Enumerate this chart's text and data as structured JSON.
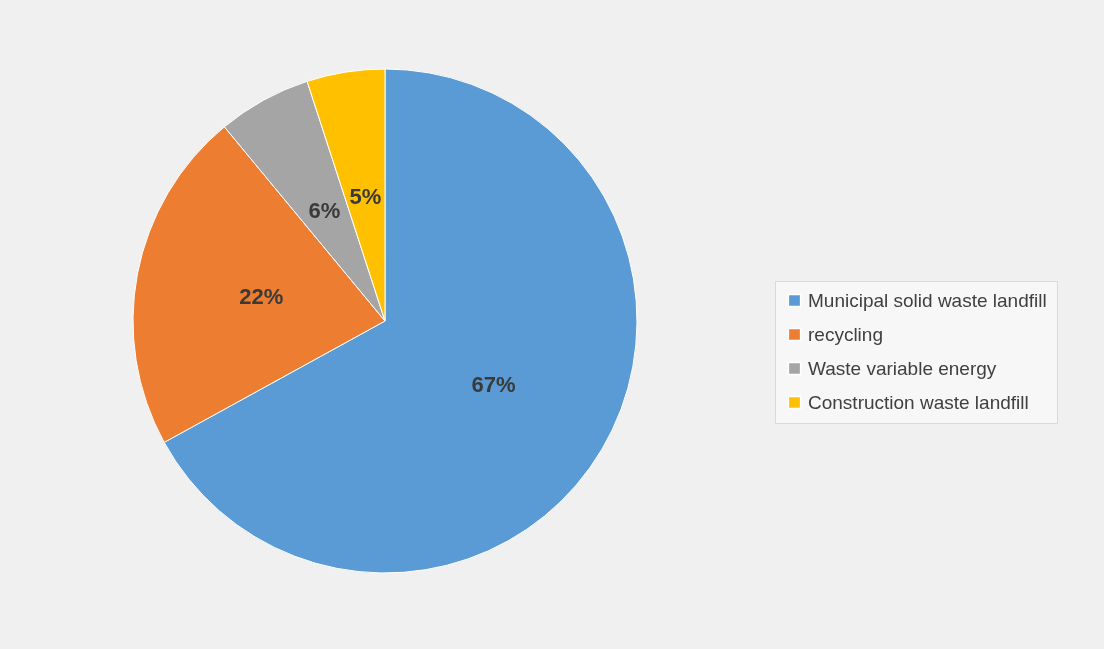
{
  "chart_data": {
    "type": "pie",
    "categories": [
      "Municipal solid waste landfill",
      "recycling",
      "Waste variable energy",
      "Construction waste landfill"
    ],
    "values": [
      67,
      22,
      6,
      5
    ],
    "colors": [
      "#5b9bd5",
      "#ed7d31",
      "#a5a5a5",
      "#ffc000"
    ],
    "value_labels": [
      "67%",
      "22%",
      "6%",
      "5%"
    ],
    "legend": "right"
  }
}
